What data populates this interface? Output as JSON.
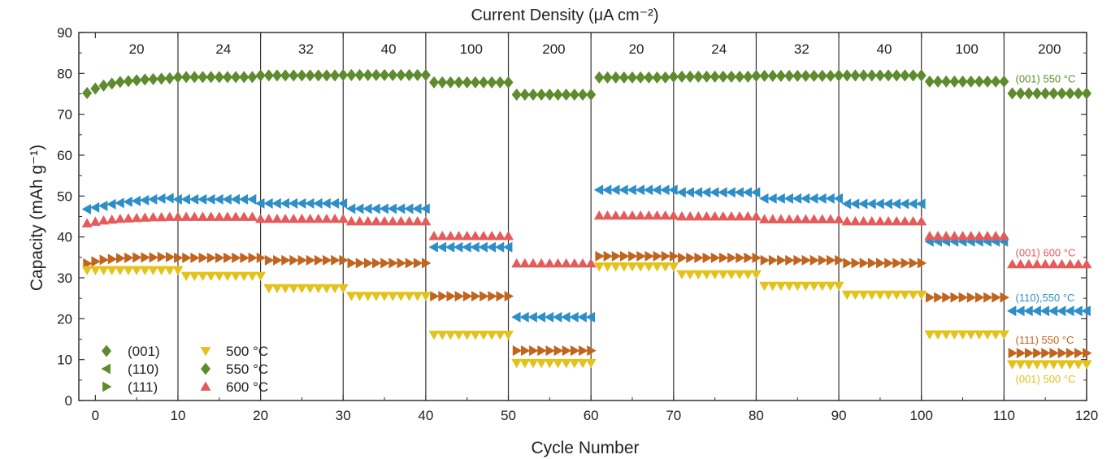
{
  "chart_data": {
    "type": "scatter",
    "title": "",
    "xlabel": "Cycle Number",
    "ylabel": "Capacity (mAh g⁻¹)",
    "top_axis_label": "Current Density (μA cm⁻²)",
    "xlim": [
      -2,
      120
    ],
    "ylim": [
      0,
      90
    ],
    "x_ticks": [
      "0",
      "10",
      "20",
      "30",
      "40",
      "50",
      "60",
      "70",
      "80",
      "90",
      "100",
      "110",
      "120"
    ],
    "y_ticks": [
      "0",
      "10",
      "20",
      "30",
      "40",
      "50",
      "60",
      "70",
      "80",
      "90"
    ],
    "current_density_labels": [
      "20",
      "24",
      "32",
      "40",
      "100",
      "200",
      "20",
      "24",
      "32",
      "40",
      "100",
      "200"
    ],
    "segment_boundaries": [
      10,
      20,
      30,
      40,
      50,
      60,
      70,
      80,
      90,
      100,
      110
    ],
    "grid": false,
    "legend": {
      "position": "bottom-left",
      "orientation_items": [
        {
          "label": "(001)",
          "marker": "diamond"
        },
        {
          "label": "(110)",
          "marker": "triangle-left"
        },
        {
          "label": "(111)",
          "marker": "triangle-right"
        }
      ],
      "temperature_items": [
        {
          "label": "500 °C",
          "marker": "triangle-down",
          "color": "#e3c21c"
        },
        {
          "label": "550 °C",
          "marker": "diamond",
          "color": "#5e8b2e"
        },
        {
          "label": "600 °C",
          "marker": "triangle-up",
          "color": "#e55a5a"
        }
      ],
      "neutral_color": "#5e8b2e"
    },
    "series": [
      {
        "name": "(001) 550 °C",
        "marker": "diamond",
        "color": "#5e8b2e",
        "segments": [
          {
            "x_start": -1,
            "x_end": 9,
            "values": [
              75.2,
              76.3,
              77,
              77.5,
              77.9,
              78.1,
              78.3,
              78.5,
              78.6,
              78.7,
              78.8
            ]
          },
          {
            "x_start": 10,
            "x_end": 19,
            "value": 79.1
          },
          {
            "x_start": 20,
            "x_end": 29,
            "value": 79.5
          },
          {
            "x_start": 30,
            "x_end": 40,
            "value": 79.6
          },
          {
            "x_start": 41,
            "x_end": 50,
            "value": 77.8
          },
          {
            "x_start": 51,
            "x_end": 60,
            "value": 74.8
          },
          {
            "x_start": 61,
            "x_end": 69,
            "value": 79.0
          },
          {
            "x_start": 70,
            "x_end": 79,
            "value": 79.2
          },
          {
            "x_start": 80,
            "x_end": 89,
            "value": 79.4
          },
          {
            "x_start": 90,
            "x_end": 100,
            "value": 79.5
          },
          {
            "x_start": 101,
            "x_end": 110,
            "value": 78.0
          },
          {
            "x_start": 111,
            "x_end": 120,
            "value": 75.1
          }
        ]
      },
      {
        "name": "(110),550 °C",
        "marker": "triangle-left",
        "color": "#2e8fc8",
        "segments": [
          {
            "x_start": -1,
            "x_end": 9,
            "values": [
              46.8,
              47.2,
              47.6,
              48,
              48.3,
              48.6,
              48.8,
              49,
              49.2,
              49.4,
              49.5
            ]
          },
          {
            "x_start": 10,
            "x_end": 19,
            "value": 49.2
          },
          {
            "x_start": 20,
            "x_end": 30,
            "value": 48.2
          },
          {
            "x_start": 31,
            "x_end": 40,
            "value": 46.9
          },
          {
            "x_start": 41,
            "x_end": 50,
            "value": 37.5
          },
          {
            "x_start": 51,
            "x_end": 60,
            "value": 20.4
          },
          {
            "x_start": 61,
            "x_end": 70,
            "value": 51.5
          },
          {
            "x_start": 71,
            "x_end": 80,
            "value": 50.9
          },
          {
            "x_start": 81,
            "x_end": 90,
            "value": 49.4
          },
          {
            "x_start": 91,
            "x_end": 100,
            "value": 48.1
          },
          {
            "x_start": 101,
            "x_end": 110,
            "value": 38.9
          },
          {
            "x_start": 111,
            "x_end": 120,
            "value": 21.9
          }
        ]
      },
      {
        "name": "(001) 600 °C",
        "marker": "triangle-up",
        "color": "#e55a5a",
        "segments": [
          {
            "x_start": -1,
            "x_end": 9,
            "values": [
              43.3,
              43.7,
              44,
              44.2,
              44.4,
              44.5,
              44.6,
              44.7,
              44.8,
              44.8,
              44.9
            ]
          },
          {
            "x_start": 10,
            "x_end": 19,
            "value": 44.9
          },
          {
            "x_start": 20,
            "x_end": 30,
            "value": 44.4
          },
          {
            "x_start": 31,
            "x_end": 40,
            "value": 43.8
          },
          {
            "x_start": 41,
            "x_end": 50,
            "value": 40.2
          },
          {
            "x_start": 51,
            "x_end": 60,
            "value": 33.5
          },
          {
            "x_start": 61,
            "x_end": 70,
            "value": 45.2
          },
          {
            "x_start": 71,
            "x_end": 80,
            "value": 45.0
          },
          {
            "x_start": 81,
            "x_end": 90,
            "value": 44.3
          },
          {
            "x_start": 91,
            "x_end": 100,
            "value": 43.8
          },
          {
            "x_start": 101,
            "x_end": 110,
            "value": 40.2
          },
          {
            "x_start": 111,
            "x_end": 120,
            "value": 33.3
          }
        ]
      },
      {
        "name": "(111) 550 °C",
        "marker": "triangle-right",
        "color": "#c0641e",
        "segments": [
          {
            "x_start": -1,
            "x_end": 9,
            "values": [
              33.5,
              34,
              34.4,
              34.6,
              34.8,
              34.9,
              35,
              35,
              35,
              35.1,
              35.1
            ]
          },
          {
            "x_start": 10,
            "x_end": 20,
            "value": 34.9
          },
          {
            "x_start": 21,
            "x_end": 30,
            "value": 34.3
          },
          {
            "x_start": 31,
            "x_end": 40,
            "value": 33.6
          },
          {
            "x_start": 41,
            "x_end": 50,
            "value": 25.5
          },
          {
            "x_start": 51,
            "x_end": 60,
            "value": 12.2
          },
          {
            "x_start": 61,
            "x_end": 70,
            "value": 35.3
          },
          {
            "x_start": 71,
            "x_end": 80,
            "value": 34.9
          },
          {
            "x_start": 81,
            "x_end": 90,
            "value": 34.3
          },
          {
            "x_start": 91,
            "x_end": 100,
            "value": 33.6
          },
          {
            "x_start": 101,
            "x_end": 110,
            "value": 25.2
          },
          {
            "x_start": 111,
            "x_end": 120,
            "value": 11.6
          }
        ]
      },
      {
        "name": "(001) 500 °C",
        "marker": "triangle-down",
        "color": "#e3c21c",
        "segments": [
          {
            "x_start": -1,
            "x_end": 10,
            "value": 31.9
          },
          {
            "x_start": 11,
            "x_end": 20,
            "value": 30.5
          },
          {
            "x_start": 21,
            "x_end": 30,
            "value": 27.5
          },
          {
            "x_start": 31,
            "x_end": 40,
            "value": 25.6
          },
          {
            "x_start": 41,
            "x_end": 50,
            "value": 16.1
          },
          {
            "x_start": 51,
            "x_end": 60,
            "value": 9.2
          },
          {
            "x_start": 61,
            "x_end": 70,
            "value": 32.8
          },
          {
            "x_start": 71,
            "x_end": 80,
            "value": 30.9
          },
          {
            "x_start": 81,
            "x_end": 90,
            "value": 28.1
          },
          {
            "x_start": 91,
            "x_end": 100,
            "value": 25.9
          },
          {
            "x_start": 101,
            "x_end": 110,
            "value": 16.2
          },
          {
            "x_start": 111,
            "x_end": 120,
            "value": 8.9
          }
        ]
      }
    ],
    "annotations": [
      {
        "text": "(001) 550 °C",
        "series": "(001) 550 °C",
        "x": 111,
        "y": 78.8
      },
      {
        "text": "(001) 600 °C",
        "series": "(001) 600 °C",
        "x": 111,
        "y": 36.3
      },
      {
        "text": "(110),550 °C",
        "series": "(110),550 °C",
        "x": 111,
        "y": 25.2
      },
      {
        "text": "(111) 550 °C",
        "series": "(111) 550 °C",
        "x": 111,
        "y": 14.9
      },
      {
        "text": "(001) 500 °C",
        "series": "(001) 500 °C",
        "x": 111,
        "y": 5.4
      }
    ]
  }
}
